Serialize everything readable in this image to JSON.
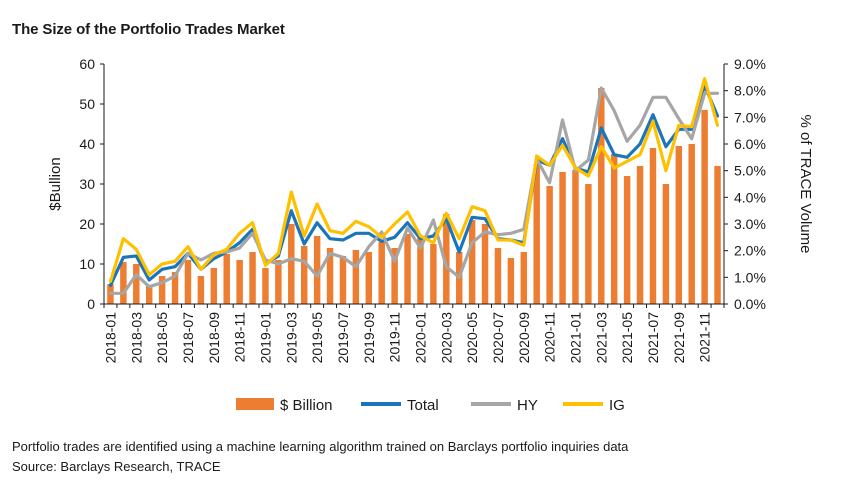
{
  "title": "The Size of the Portfolio Trades Market",
  "footnote": "Portfolio trades are identified using a machine learning algorithm trained on Barclays portfolio inquiries data",
  "source": "Source: Barclays Research, TRACE",
  "chart_data": {
    "type": "bar+line",
    "xlabel": "",
    "ylabel_left": "$Bullion",
    "ylabel_right": "% of TRACE  Volume",
    "ylim_left": [
      0,
      60
    ],
    "yticks_left": [
      "0",
      "10",
      "20",
      "30",
      "40",
      "50",
      "60"
    ],
    "ylim_right": [
      0,
      9
    ],
    "yticks_right": [
      "0.0%",
      "1.0%",
      "2.0%",
      "3.0%",
      "4.0%",
      "5.0%",
      "6.0%",
      "7.0%",
      "8.0%",
      "9.0%"
    ],
    "grid": false,
    "legend_position": "bottom",
    "x_tick_labels": [
      "2018-01",
      "2018-03",
      "2018-05",
      "2018-07",
      "2018-09",
      "2018-11",
      "2019-01",
      "2019-03",
      "2019-05",
      "2019-07",
      "2019-09",
      "2019-11",
      "2020-01",
      "2020-03",
      "2020-05",
      "2020-07",
      "2020-09",
      "2020-11",
      "2021-01",
      "2021-03",
      "2021-05",
      "2021-07",
      "2021-09",
      "2021-11"
    ],
    "categories": [
      "2018-01",
      "2018-02",
      "2018-03",
      "2018-04",
      "2018-05",
      "2018-06",
      "2018-07",
      "2018-08",
      "2018-09",
      "2018-10",
      "2018-11",
      "2018-12",
      "2019-01",
      "2019-02",
      "2019-03",
      "2019-04",
      "2019-05",
      "2019-06",
      "2019-07",
      "2019-08",
      "2019-09",
      "2019-10",
      "2019-11",
      "2019-12",
      "2020-01",
      "2020-02",
      "2020-03",
      "2020-04",
      "2020-05",
      "2020-06",
      "2020-07",
      "2020-08",
      "2020-09",
      "2020-10",
      "2020-11",
      "2020-12",
      "2021-01",
      "2021-02",
      "2021-03",
      "2021-04",
      "2021-05",
      "2021-06",
      "2021-07",
      "2021-08",
      "2021-09",
      "2021-10",
      "2021-11",
      "2021-12"
    ],
    "series": [
      {
        "name": "$ Billion",
        "type": "bar",
        "axis": "left",
        "color": "#ED7D31",
        "values": [
          5.0,
          10.5,
          10.0,
          4.5,
          7.0,
          8.0,
          11.0,
          7.0,
          9.0,
          12.5,
          11.0,
          13.0,
          9.0,
          11.0,
          20.0,
          14.5,
          17.0,
          14.0,
          12.0,
          13.5,
          13.0,
          15.5,
          14.0,
          17.5,
          17.0,
          15.0,
          22.5,
          13.0,
          21.0,
          20.0,
          14.0,
          11.5,
          13.0,
          35.0,
          29.5,
          33.0,
          33.5,
          30.0,
          54.0,
          37.5,
          32.0,
          34.5,
          39.0,
          30.0,
          39.5,
          40.0,
          48.5,
          34.5
        ]
      },
      {
        "name": "Total",
        "type": "line",
        "axis": "right",
        "color": "#1B75BB",
        "values": [
          0.7,
          1.75,
          1.8,
          0.9,
          1.3,
          1.4,
          1.9,
          1.3,
          1.7,
          1.95,
          2.3,
          2.8,
          1.5,
          1.8,
          3.5,
          2.25,
          3.05,
          2.45,
          2.4,
          2.65,
          2.65,
          2.35,
          2.5,
          3.05,
          2.45,
          2.55,
          3.2,
          1.95,
          3.25,
          3.2,
          2.45,
          2.4,
          2.3,
          5.4,
          5.2,
          6.2,
          5.1,
          4.95,
          6.6,
          5.6,
          5.5,
          6.0,
          7.1,
          5.9,
          6.55,
          6.55,
          8.2,
          7.05
        ]
      },
      {
        "name": "HY",
        "type": "line",
        "axis": "right",
        "color": "#A6A6A6",
        "values": [
          0.4,
          0.4,
          1.1,
          0.65,
          0.8,
          1.05,
          1.9,
          1.65,
          1.9,
          1.95,
          2.1,
          2.65,
          1.65,
          1.5,
          1.7,
          1.6,
          1.05,
          1.9,
          1.75,
          1.4,
          2.15,
          2.7,
          1.6,
          2.85,
          2.1,
          3.15,
          1.4,
          1.0,
          2.3,
          2.7,
          2.6,
          2.65,
          2.8,
          5.45,
          4.55,
          6.9,
          5.0,
          5.4,
          8.1,
          7.25,
          6.1,
          6.7,
          7.75,
          7.75,
          6.95,
          6.2,
          7.9,
          7.9
        ]
      },
      {
        "name": "IG",
        "type": "line",
        "axis": "right",
        "color": "#FFC000",
        "values": [
          0.85,
          2.45,
          2.05,
          1.1,
          1.5,
          1.6,
          2.15,
          1.3,
          1.85,
          2.05,
          2.65,
          3.05,
          1.45,
          1.9,
          4.2,
          2.55,
          3.75,
          2.75,
          2.65,
          3.1,
          2.9,
          2.5,
          3.0,
          3.45,
          2.55,
          2.3,
          3.4,
          2.45,
          3.65,
          3.5,
          2.4,
          2.4,
          2.2,
          5.55,
          5.2,
          5.95,
          5.1,
          4.8,
          5.9,
          5.1,
          5.35,
          5.6,
          6.85,
          5.0,
          6.7,
          6.65,
          8.45,
          6.7
        ]
      }
    ]
  }
}
